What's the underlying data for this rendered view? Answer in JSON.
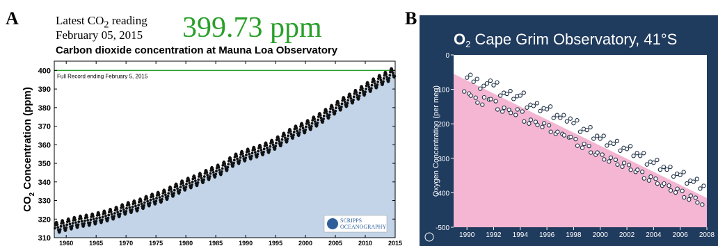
{
  "panel_a": {
    "letter": "A",
    "latest_label_pre": "Latest CO",
    "latest_label_sub": "2",
    "latest_label_post": " reading",
    "latest_date": "February 05, 2015",
    "reading": "399.73 ppm",
    "reading_color": "#2aa02a",
    "logo_text_1": "SCRIPPS",
    "logo_text_2": "OCEANOGRAPHY"
  },
  "panel_b": {
    "letter": "B",
    "title_pre": "O",
    "title_sub": "2",
    "title_post": "  Cape Grim Observatory, 41°S",
    "background_color": "#1f3b5e",
    "fill_color": "#f4b6d2"
  },
  "chart_data": [
    {
      "type": "scatter",
      "title": "Carbon dioxide concentration at Mauna Loa Observatory",
      "ylabel": "CO2 Concentration (ppm)",
      "ylabel_parts": [
        "CO",
        "2",
        " Concentration (ppm)"
      ],
      "xlabel": "",
      "xlim": [
        1958,
        2015
      ],
      "ylim": [
        310,
        405
      ],
      "x_ticks": [
        1960,
        1965,
        1970,
        1975,
        1980,
        1985,
        1990,
        1995,
        2000,
        2005,
        2010,
        2015
      ],
      "y_ticks": [
        310,
        320,
        330,
        340,
        350,
        360,
        370,
        380,
        390,
        400
      ],
      "annotation": "Full Record ending February 5, 2015",
      "reference_line": 400,
      "reference_line_color": "#2aa02a",
      "fill_color": "#c3d4e8",
      "seasonal_amplitude": 3,
      "series": [
        {
          "values": [
            [
              1958,
              315.0
            ],
            [
              1960,
              316.9
            ],
            [
              1962,
              318.5
            ],
            [
              1964,
              319.6
            ],
            [
              1966,
              321.1
            ],
            [
              1968,
              323.0
            ],
            [
              1970,
              325.7
            ],
            [
              1972,
              327.4
            ],
            [
              1974,
              330.2
            ],
            [
              1976,
              332.1
            ],
            [
              1978,
              335.4
            ],
            [
              1980,
              338.7
            ],
            [
              1982,
              341.1
            ],
            [
              1984,
              344.4
            ],
            [
              1986,
              347.0
            ],
            [
              1988,
              351.6
            ],
            [
              1990,
              354.4
            ],
            [
              1992,
              356.4
            ],
            [
              1994,
              358.9
            ],
            [
              1996,
              362.6
            ],
            [
              1998,
              366.7
            ],
            [
              2000,
              369.5
            ],
            [
              2002,
              373.2
            ],
            [
              2004,
              377.5
            ],
            [
              2006,
              381.9
            ],
            [
              2008,
              385.6
            ],
            [
              2010,
              389.9
            ],
            [
              2012,
              393.8
            ],
            [
              2014,
              397.2
            ],
            [
              2015,
              399.7
            ]
          ]
        }
      ]
    },
    {
      "type": "scatter",
      "title": "",
      "ylabel": "Oxygen Concentration (per meg)",
      "xlabel": "",
      "xlim": [
        1989,
        2008
      ],
      "ylim": [
        -500,
        0
      ],
      "x_ticks": [
        1990,
        1992,
        1994,
        1996,
        1998,
        2000,
        2002,
        2004,
        2006,
        2008
      ],
      "y_ticks": [
        0,
        -100,
        -200,
        -300,
        -400,
        -500
      ],
      "trend": [
        [
          1989,
          -55
        ],
        [
          2008,
          -415
        ]
      ],
      "seasonal_amplitude": 25,
      "series": [
        {
          "values": [
            [
              1990,
              -78
            ],
            [
              1990.5,
              -90
            ],
            [
              1991,
              -110
            ],
            [
              1991.5,
              -95
            ],
            [
              1992,
              -100
            ],
            [
              1992.5,
              -130
            ],
            [
              1993,
              -125
            ],
            [
              1993.5,
              -140
            ],
            [
              1994,
              -130
            ],
            [
              1994.5,
              -165
            ],
            [
              1995,
              -160
            ],
            [
              1995.5,
              -175
            ],
            [
              1996,
              -170
            ],
            [
              1996.5,
              -195
            ],
            [
              1997,
              -195
            ],
            [
              1997.5,
              -205
            ],
            [
              1998,
              -210
            ],
            [
              1998.5,
              -235
            ],
            [
              1999,
              -230
            ],
            [
              1999.5,
              -255
            ],
            [
              2000,
              -255
            ],
            [
              2000.5,
              -275
            ],
            [
              2001,
              -270
            ],
            [
              2001.5,
              -290
            ],
            [
              2002,
              -285
            ],
            [
              2002.5,
              -305
            ],
            [
              2003,
              -305
            ],
            [
              2003.5,
              -330
            ],
            [
              2004,
              -325
            ],
            [
              2004.5,
              -345
            ],
            [
              2005,
              -345
            ],
            [
              2005.5,
              -365
            ],
            [
              2006,
              -360
            ],
            [
              2006.5,
              -385
            ],
            [
              2007,
              -380
            ],
            [
              2007.5,
              -400
            ]
          ]
        }
      ]
    }
  ]
}
